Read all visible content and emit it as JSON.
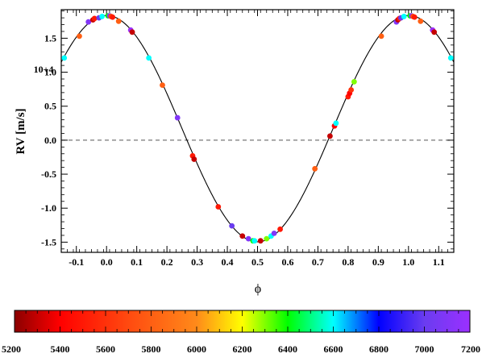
{
  "chart_data": {
    "type": "scatter",
    "xlabel": "ϕ",
    "ylabel": "RV [m/s]",
    "y_scale_label": "10+4",
    "xlim": [
      -0.15,
      1.15
    ],
    "ylim": [
      -1.65,
      1.92
    ],
    "x_ticks": [
      -0.1,
      0.0,
      0.1,
      0.2,
      0.3,
      0.4,
      0.5,
      0.6,
      0.7,
      0.8,
      0.9,
      1.0,
      1.1
    ],
    "x_tick_labels": [
      "-0.1",
      "0.0",
      "0.1",
      "0.2",
      "0.3",
      "0.4",
      "0.5",
      "0.6",
      "0.7",
      "0.8",
      "0.9",
      "1.0",
      "1.1"
    ],
    "y_ticks": [
      -1.5,
      -1.0,
      -0.5,
      0.0,
      0.5,
      1.0,
      1.5
    ],
    "y_tick_labels": [
      "-1.5",
      "-1.0",
      "-0.5",
      "0.0",
      "0.5",
      "1.0",
      "1.5"
    ],
    "zero_line": true,
    "model_curve": {
      "type": "sine",
      "offset": 0.17,
      "amplitude": 1.665,
      "period": 1.0,
      "phase_peak": 0.0
    },
    "points": [
      {
        "x": -0.14,
        "y": 1.21,
        "c": 6600
      },
      {
        "x": -0.09,
        "y": 1.53,
        "c": 5800
      },
      {
        "x": -0.06,
        "y": 1.74,
        "c": 7100
      },
      {
        "x": -0.045,
        "y": 1.77,
        "c": 5300
      },
      {
        "x": -0.04,
        "y": 1.79,
        "c": 5500
      },
      {
        "x": -0.025,
        "y": 1.8,
        "c": 7000
      },
      {
        "x": -0.015,
        "y": 1.82,
        "c": 6600
      },
      {
        "x": 0.005,
        "y": 1.83,
        "c": 6400
      },
      {
        "x": 0.01,
        "y": 1.83,
        "c": 7100
      },
      {
        "x": 0.015,
        "y": 1.82,
        "c": 5700
      },
      {
        "x": 0.02,
        "y": 1.81,
        "c": 5500
      },
      {
        "x": 0.04,
        "y": 1.75,
        "c": 5800
      },
      {
        "x": 0.08,
        "y": 1.62,
        "c": 7200
      },
      {
        "x": 0.085,
        "y": 1.59,
        "c": 5300
      },
      {
        "x": 0.14,
        "y": 1.21,
        "c": 6600
      },
      {
        "x": 0.185,
        "y": 0.81,
        "c": 5800
      },
      {
        "x": 0.235,
        "y": 0.33,
        "c": 7100
      },
      {
        "x": 0.285,
        "y": -0.23,
        "c": 5500
      },
      {
        "x": 0.29,
        "y": -0.28,
        "c": 5300
      },
      {
        "x": 0.37,
        "y": -0.98,
        "c": 5500
      },
      {
        "x": 0.415,
        "y": -1.26,
        "c": 7000
      },
      {
        "x": 0.45,
        "y": -1.41,
        "c": 5300
      },
      {
        "x": 0.47,
        "y": -1.45,
        "c": 7100
      },
      {
        "x": 0.485,
        "y": -1.48,
        "c": 6400
      },
      {
        "x": 0.49,
        "y": -1.48,
        "c": 6600
      },
      {
        "x": 0.51,
        "y": -1.48,
        "c": 5300
      },
      {
        "x": 0.53,
        "y": -1.45,
        "c": 6300
      },
      {
        "x": 0.545,
        "y": -1.41,
        "c": 6600
      },
      {
        "x": 0.555,
        "y": -1.37,
        "c": 7100
      },
      {
        "x": 0.575,
        "y": -1.31,
        "c": 5500
      },
      {
        "x": 0.69,
        "y": -0.42,
        "c": 5800
      },
      {
        "x": 0.74,
        "y": 0.06,
        "c": 5300
      },
      {
        "x": 0.755,
        "y": 0.21,
        "c": 5400
      },
      {
        "x": 0.76,
        "y": 0.25,
        "c": 6600
      },
      {
        "x": 0.8,
        "y": 0.64,
        "c": 5500
      },
      {
        "x": 0.805,
        "y": 0.69,
        "c": 5400
      },
      {
        "x": 0.81,
        "y": 0.74,
        "c": 5600
      },
      {
        "x": 0.82,
        "y": 0.86,
        "c": 6300
      },
      {
        "x": 0.91,
        "y": 1.53,
        "c": 5800
      },
      {
        "x": 0.96,
        "y": 1.74,
        "c": 7100
      },
      {
        "x": 0.965,
        "y": 1.77,
        "c": 5300
      },
      {
        "x": 0.97,
        "y": 1.79,
        "c": 5500
      },
      {
        "x": 0.975,
        "y": 1.8,
        "c": 7000
      },
      {
        "x": 0.985,
        "y": 1.82,
        "c": 6600
      },
      {
        "x": 1.005,
        "y": 1.83,
        "c": 6400
      },
      {
        "x": 1.01,
        "y": 1.83,
        "c": 7100
      },
      {
        "x": 1.015,
        "y": 1.82,
        "c": 5700
      },
      {
        "x": 1.02,
        "y": 1.81,
        "c": 5500
      },
      {
        "x": 1.04,
        "y": 1.75,
        "c": 5800
      },
      {
        "x": 1.08,
        "y": 1.62,
        "c": 7200
      },
      {
        "x": 1.085,
        "y": 1.59,
        "c": 5300
      },
      {
        "x": 1.14,
        "y": 1.21,
        "c": 6600
      }
    ],
    "colorbar": {
      "min": 5200,
      "max": 7200,
      "tick_values": [
        5200,
        5400,
        5600,
        5800,
        6000,
        6200,
        6400,
        6600,
        6800,
        7000,
        7200
      ],
      "tick_labels": [
        "5200",
        "5400",
        "5600",
        "5800",
        "6000",
        "6200",
        "6400",
        "6600",
        "6800",
        "7000",
        "7200"
      ],
      "colormap": "rainbow"
    }
  }
}
